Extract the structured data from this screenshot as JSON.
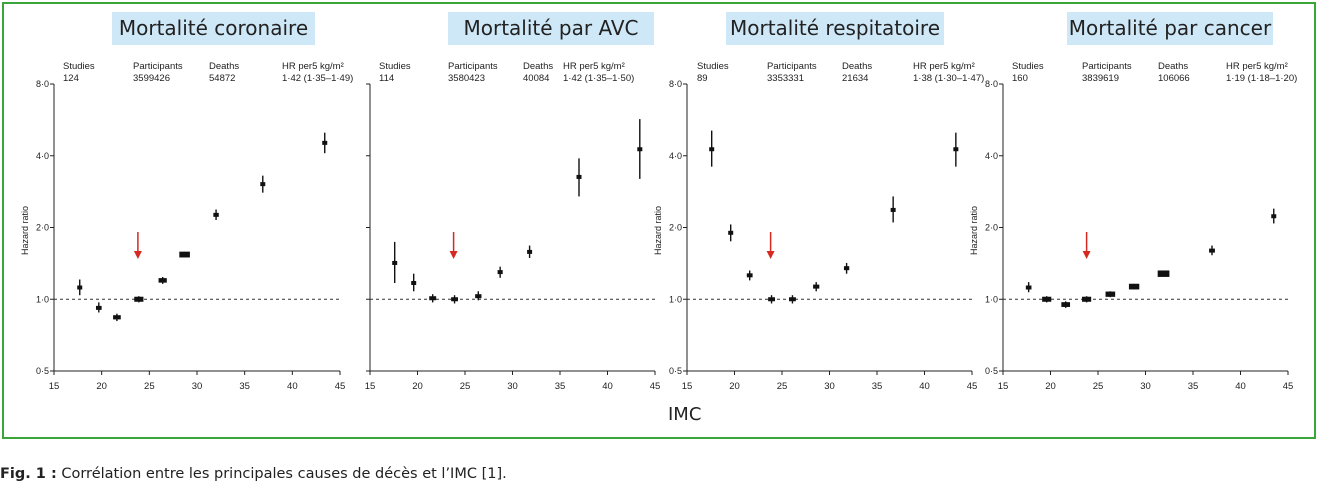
{
  "figure": {
    "xlabel": "IMC",
    "caption_bold": "Fig. 1 :",
    "caption_text": " Corrélation entre les principales causes de décès et l’IMC [1]."
  },
  "chart_data": [
    {
      "type": "scatter",
      "title": "Mortalité coronaire",
      "stats": {
        "studies_label": "Studies",
        "studies": "124",
        "participants_label": "Participants",
        "participants": "3599426",
        "deaths_label": "Deaths",
        "deaths": "54872",
        "hr_label": "HR per5 kg/m²",
        "hr": "1·42 (1·35–1·49)"
      },
      "xlabel": "",
      "ylabel": "Hazard ratio",
      "xlim": [
        15,
        45
      ],
      "ylim": [
        0.5,
        8.0
      ],
      "yscale": "log",
      "xticks": [
        "15",
        "20",
        "25",
        "30",
        "35",
        "40",
        "45"
      ],
      "yticks": [
        "0·5",
        "1·0",
        "2·0",
        "4·0",
        "8·0"
      ],
      "reference_line": 1.0,
      "arrow_x": 23.8,
      "points": [
        {
          "x": 17.7,
          "y": 1.12,
          "lo": 1.04,
          "hi": 1.21
        },
        {
          "x": 19.7,
          "y": 0.92,
          "lo": 0.88,
          "hi": 0.97
        },
        {
          "x": 21.6,
          "y": 0.84,
          "lo": 0.81,
          "hi": 0.87
        },
        {
          "x": 23.9,
          "y": 1.0,
          "lo": 0.97,
          "hi": 1.03
        },
        {
          "x": 26.4,
          "y": 1.2,
          "lo": 1.16,
          "hi": 1.24
        },
        {
          "x": 28.7,
          "y": 1.54,
          "lo": 1.5,
          "hi": 1.58
        },
        {
          "x": 32.0,
          "y": 2.26,
          "lo": 2.15,
          "hi": 2.38
        },
        {
          "x": 36.9,
          "y": 3.04,
          "lo": 2.8,
          "hi": 3.3
        },
        {
          "x": 43.4,
          "y": 4.53,
          "lo": 4.1,
          "hi": 5.0
        }
      ]
    },
    {
      "type": "scatter",
      "title": "Mortalité par AVC",
      "stats": {
        "studies_label": "Studies",
        "studies": "114",
        "participants_label": "Participants",
        "participants": "3580423",
        "deaths_label": "Deaths",
        "deaths": "40084",
        "hr_label": "HR per5 kg/m²",
        "hr": "1·42 (1·35–1·50)"
      },
      "xlabel": "",
      "ylabel": "",
      "xlim": [
        15,
        45
      ],
      "ylim": [
        0.5,
        8.0
      ],
      "yscale": "log",
      "xticks": [
        "15",
        "20",
        "25",
        "30",
        "35",
        "40",
        "45"
      ],
      "yticks": [],
      "reference_line": 1.0,
      "arrow_x": 23.8,
      "points": [
        {
          "x": 17.6,
          "y": 1.42,
          "lo": 1.17,
          "hi": 1.74
        },
        {
          "x": 19.6,
          "y": 1.17,
          "lo": 1.08,
          "hi": 1.28
        },
        {
          "x": 21.6,
          "y": 1.01,
          "lo": 0.97,
          "hi": 1.05
        },
        {
          "x": 23.9,
          "y": 1.0,
          "lo": 0.96,
          "hi": 1.04
        },
        {
          "x": 26.4,
          "y": 1.03,
          "lo": 0.99,
          "hi": 1.08
        },
        {
          "x": 28.7,
          "y": 1.3,
          "lo": 1.23,
          "hi": 1.37
        },
        {
          "x": 31.8,
          "y": 1.58,
          "lo": 1.49,
          "hi": 1.68
        },
        {
          "x": 37.0,
          "y": 3.26,
          "lo": 2.7,
          "hi": 3.9
        },
        {
          "x": 43.4,
          "y": 4.26,
          "lo": 3.2,
          "hi": 5.7
        }
      ]
    },
    {
      "type": "scatter",
      "title": "Mortalité respitatoire",
      "stats": {
        "studies_label": "Studies",
        "studies": "89",
        "participants_label": "Participants",
        "participants": "3353331",
        "deaths_label": "Deaths",
        "deaths": "21634",
        "hr_label": "HR per5 kg/m²",
        "hr": "1·38 (1·30–1·47)"
      },
      "xlabel": "",
      "ylabel": "Hazard ratio",
      "xlim": [
        15,
        45
      ],
      "ylim": [
        0.5,
        8.0
      ],
      "yscale": "log",
      "xticks": [
        "15",
        "20",
        "25",
        "30",
        "35",
        "40",
        "45"
      ],
      "yticks": [
        "0·5",
        "1·0",
        "2·0",
        "4·0",
        "8·0"
      ],
      "reference_line": 1.0,
      "arrow_x": 23.8,
      "points": [
        {
          "x": 17.6,
          "y": 4.26,
          "lo": 3.6,
          "hi": 5.1
        },
        {
          "x": 19.6,
          "y": 1.9,
          "lo": 1.75,
          "hi": 2.06
        },
        {
          "x": 21.6,
          "y": 1.26,
          "lo": 1.2,
          "hi": 1.32
        },
        {
          "x": 23.9,
          "y": 1.0,
          "lo": 0.96,
          "hi": 1.04
        },
        {
          "x": 26.1,
          "y": 1.0,
          "lo": 0.96,
          "hi": 1.04
        },
        {
          "x": 28.6,
          "y": 1.13,
          "lo": 1.08,
          "hi": 1.18
        },
        {
          "x": 31.8,
          "y": 1.35,
          "lo": 1.28,
          "hi": 1.42
        },
        {
          "x": 36.7,
          "y": 2.37,
          "lo": 2.1,
          "hi": 2.7
        },
        {
          "x": 43.3,
          "y": 4.26,
          "lo": 3.6,
          "hi": 5.0
        }
      ]
    },
    {
      "type": "scatter",
      "title": "Mortalité par cancer",
      "stats": {
        "studies_label": "Studies",
        "studies": "160",
        "participants_label": "Participants",
        "participants": "3839619",
        "deaths_label": "Deaths",
        "deaths": "106066",
        "hr_label": "HR per5 kg/m²",
        "hr": "1·19 (1·18–1·20)"
      },
      "xlabel": "",
      "ylabel": "Hazard ratio",
      "xlim": [
        15,
        45
      ],
      "ylim": [
        0.5,
        8.0
      ],
      "yscale": "log",
      "xticks": [
        "15",
        "20",
        "25",
        "30",
        "35",
        "40",
        "45"
      ],
      "yticks": [
        "0·5",
        "1·0",
        "2·0",
        "4·0",
        "8·0"
      ],
      "reference_line": 1.0,
      "arrow_x": 23.8,
      "points": [
        {
          "x": 17.7,
          "y": 1.12,
          "lo": 1.07,
          "hi": 1.18
        },
        {
          "x": 19.6,
          "y": 1.0,
          "lo": 0.97,
          "hi": 1.03
        },
        {
          "x": 21.6,
          "y": 0.95,
          "lo": 0.92,
          "hi": 0.98
        },
        {
          "x": 23.8,
          "y": 1.0,
          "lo": 0.97,
          "hi": 1.03
        },
        {
          "x": 26.3,
          "y": 1.05,
          "lo": 1.02,
          "hi": 1.08
        },
        {
          "x": 28.8,
          "y": 1.13,
          "lo": 1.1,
          "hi": 1.16
        },
        {
          "x": 31.9,
          "y": 1.28,
          "lo": 1.25,
          "hi": 1.31
        },
        {
          "x": 37.0,
          "y": 1.6,
          "lo": 1.53,
          "hi": 1.68
        },
        {
          "x": 43.5,
          "y": 2.23,
          "lo": 2.08,
          "hi": 2.4
        }
      ]
    }
  ]
}
